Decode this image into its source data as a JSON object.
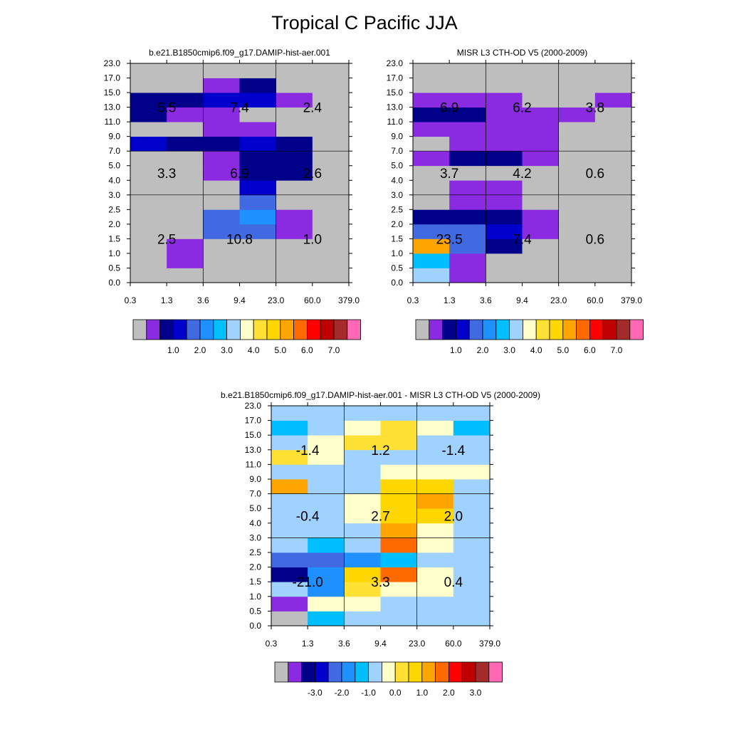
{
  "title": "Tropical C Pacific JJA",
  "colors": {
    "cmap": [
      "#bebebe",
      "#8a2be2",
      "#00008b",
      "#0000cd",
      "#4169e1",
      "#1e90ff",
      "#00bfff",
      "#a0d2ff",
      "#ffffcc",
      "#ffe135",
      "#ffd700",
      "#ffa500",
      "#ff6a00",
      "#ff0000",
      "#c00000",
      "#a52a2a",
      "#ff69b4"
    ]
  },
  "chart_data": [
    {
      "type": "heatmap",
      "title": "b.e21.B1850cmip6.f09_g17.DAMIP-hist-aer.001",
      "x_ticks": [
        "0.3",
        "1.3",
        "3.6",
        "9.4",
        "23.0",
        "60.0",
        "379.0"
      ],
      "y_ticks": [
        "0.0",
        "0.5",
        "1.0",
        "1.5",
        "2.0",
        "2.5",
        "3.0",
        "4.0",
        "5.0",
        "7.0",
        "9.0",
        "11.0",
        "13.0",
        "15.0",
        "17.0",
        "23.0"
      ],
      "grid": "x at 3.6 and 23.0; y at 3.0 and 7.0",
      "cells": [
        [
          0,
          0,
          0,
          0,
          0,
          0
        ],
        [
          0,
          1,
          0,
          0,
          0,
          0
        ],
        [
          0,
          1,
          0,
          0,
          0,
          0
        ],
        [
          0,
          0,
          4,
          4,
          1,
          0
        ],
        [
          0,
          0,
          4,
          5,
          1,
          0
        ],
        [
          0,
          0,
          0,
          4,
          0,
          0
        ],
        [
          0,
          0,
          0,
          3,
          0,
          0
        ],
        [
          0,
          0,
          1,
          2,
          2,
          0
        ],
        [
          0,
          0,
          1,
          2,
          2,
          0
        ],
        [
          3,
          2,
          2,
          3,
          2,
          0
        ],
        [
          0,
          0,
          1,
          1,
          0,
          0
        ],
        [
          2,
          1,
          1,
          0,
          0,
          0
        ],
        [
          2,
          2,
          3,
          3,
          1,
          0
        ],
        [
          0,
          0,
          1,
          2,
          0,
          0
        ],
        [
          0,
          0,
          0,
          0,
          0,
          0
        ]
      ],
      "annotations": [
        {
          "x_region": 0,
          "y_region": 2,
          "label": "5.5"
        },
        {
          "x_region": 1,
          "y_region": 2,
          "label": "7.4"
        },
        {
          "x_region": 2,
          "y_region": 2,
          "label": "2.4"
        },
        {
          "x_region": 0,
          "y_region": 1,
          "label": "3.3"
        },
        {
          "x_region": 1,
          "y_region": 1,
          "label": "6.9"
        },
        {
          "x_region": 2,
          "y_region": 1,
          "label": "2.6"
        },
        {
          "x_region": 0,
          "y_region": 0,
          "label": "2.5"
        },
        {
          "x_region": 1,
          "y_region": 0,
          "label": "10.8"
        },
        {
          "x_region": 2,
          "y_region": 0,
          "label": "1.0"
        }
      ],
      "colorbar_labels": [
        "1.0",
        "2.0",
        "3.0",
        "4.0",
        "5.0",
        "6.0",
        "7.0"
      ]
    },
    {
      "type": "heatmap",
      "title": "MISR L3 CTH-OD V5 (2000-2009)",
      "x_ticks": [
        "0.3",
        "1.3",
        "3.6",
        "9.4",
        "23.0",
        "60.0",
        "379.0"
      ],
      "y_ticks": [
        "0.0",
        "0.5",
        "1.0",
        "1.5",
        "2.0",
        "2.5",
        "3.0",
        "4.0",
        "5.0",
        "7.0",
        "9.0",
        "11.0",
        "13.0",
        "15.0",
        "17.0",
        "23.0"
      ],
      "grid": "x at 3.6 and 23.0; y at 3.0 and 7.0",
      "cells": [
        [
          7,
          1,
          0,
          0,
          0,
          0
        ],
        [
          6,
          1,
          0,
          0,
          0,
          0
        ],
        [
          11,
          4,
          2,
          0,
          0,
          0
        ],
        [
          4,
          4,
          3,
          1,
          0,
          0
        ],
        [
          2,
          2,
          2,
          1,
          0,
          0
        ],
        [
          0,
          1,
          1,
          0,
          0,
          0
        ],
        [
          0,
          1,
          1,
          0,
          0,
          0
        ],
        [
          0,
          0,
          0,
          0,
          0,
          0
        ],
        [
          1,
          2,
          2,
          1,
          0,
          0
        ],
        [
          0,
          1,
          1,
          1,
          0,
          0
        ],
        [
          1,
          1,
          1,
          1,
          0,
          0
        ],
        [
          2,
          2,
          1,
          1,
          1,
          0
        ],
        [
          1,
          1,
          1,
          0,
          0,
          1
        ],
        [
          0,
          0,
          0,
          0,
          0,
          0
        ],
        [
          0,
          0,
          0,
          0,
          0,
          0
        ]
      ],
      "annotations": [
        {
          "x_region": 0,
          "y_region": 2,
          "label": "6.9"
        },
        {
          "x_region": 1,
          "y_region": 2,
          "label": "6.2"
        },
        {
          "x_region": 2,
          "y_region": 2,
          "label": "3.8"
        },
        {
          "x_region": 0,
          "y_region": 1,
          "label": "3.7"
        },
        {
          "x_region": 1,
          "y_region": 1,
          "label": "4.2"
        },
        {
          "x_region": 2,
          "y_region": 1,
          "label": "0.6"
        },
        {
          "x_region": 0,
          "y_region": 0,
          "label": "23.5"
        },
        {
          "x_region": 1,
          "y_region": 0,
          "label": "7.4"
        },
        {
          "x_region": 2,
          "y_region": 0,
          "label": "0.6"
        }
      ],
      "colorbar_labels": [
        "1.0",
        "2.0",
        "3.0",
        "4.0",
        "5.0",
        "6.0",
        "7.0"
      ]
    },
    {
      "type": "heatmap",
      "title": "b.e21.B1850cmip6.f09_g17.DAMIP-hist-aer.001 - MISR L3 CTH-OD V5 (2000-2009)",
      "x_ticks": [
        "0.3",
        "1.3",
        "3.6",
        "9.4",
        "23.0",
        "60.0",
        "379.0"
      ],
      "y_ticks": [
        "0.0",
        "0.5",
        "1.0",
        "1.5",
        "2.0",
        "2.5",
        "3.0",
        "4.0",
        "5.0",
        "7.0",
        "9.0",
        "11.0",
        "13.0",
        "15.0",
        "17.0",
        "23.0"
      ],
      "grid": "x at 3.6 and 23.0; y at 3.0 and 7.0",
      "cells": [
        [
          0,
          6,
          7,
          7,
          7,
          7
        ],
        [
          1,
          8,
          8,
          7,
          7,
          7
        ],
        [
          7,
          5,
          9,
          8,
          8,
          7
        ],
        [
          2,
          5,
          10,
          12,
          8,
          7
        ],
        [
          4,
          4,
          5,
          6,
          7,
          7
        ],
        [
          7,
          6,
          7,
          12,
          8,
          7
        ],
        [
          7,
          7,
          7,
          11,
          8,
          7
        ],
        [
          7,
          7,
          8,
          10,
          10,
          7
        ],
        [
          7,
          7,
          8,
          10,
          11,
          7
        ],
        [
          11,
          7,
          7,
          10,
          10,
          7
        ],
        [
          7,
          7,
          7,
          8,
          8,
          8
        ],
        [
          9,
          8,
          7,
          7,
          7,
          7
        ],
        [
          7,
          8,
          9,
          9,
          7,
          7
        ],
        [
          6,
          7,
          8,
          9,
          8,
          6
        ],
        [
          7,
          7,
          7,
          7,
          7,
          7
        ]
      ],
      "annotations": [
        {
          "x_region": 0,
          "y_region": 2,
          "label": "-1.4"
        },
        {
          "x_region": 1,
          "y_region": 2,
          "label": "1.2"
        },
        {
          "x_region": 2,
          "y_region": 2,
          "label": "-1.4"
        },
        {
          "x_region": 0,
          "y_region": 1,
          "label": "-0.4"
        },
        {
          "x_region": 1,
          "y_region": 1,
          "label": "2.7"
        },
        {
          "x_region": 2,
          "y_region": 1,
          "label": "2.0"
        },
        {
          "x_region": 0,
          "y_region": 0,
          "label": "-21.0"
        },
        {
          "x_region": 1,
          "y_region": 0,
          "label": "3.3"
        },
        {
          "x_region": 2,
          "y_region": 0,
          "label": "0.4"
        }
      ],
      "colorbar_labels": [
        "-3.0",
        "-2.0",
        "-1.0",
        "0.0",
        "1.0",
        "2.0",
        "3.0"
      ]
    }
  ]
}
